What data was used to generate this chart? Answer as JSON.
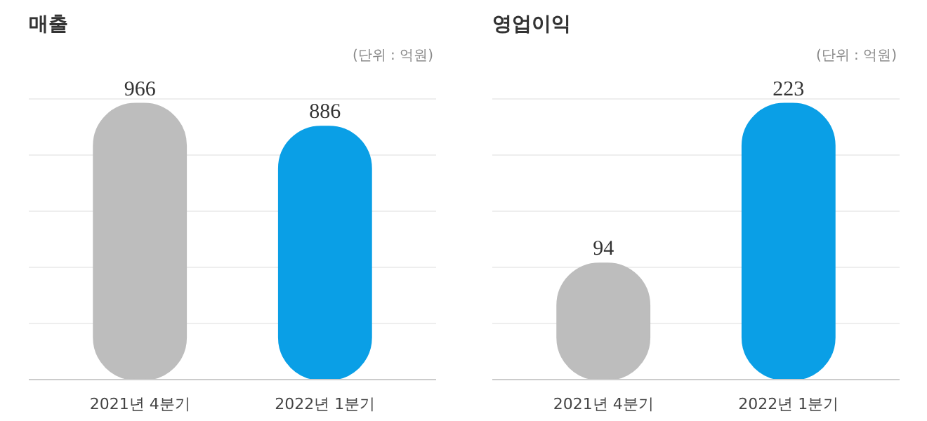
{
  "chart_data": [
    {
      "type": "bar",
      "title": "매출",
      "subtitle": "(단위 : 억원)",
      "categories": [
        "2021년 4분기",
        "2022년 1분기"
      ],
      "values": [
        966,
        886
      ],
      "colors": [
        "#bdbdbd",
        "#0a9fe6"
      ],
      "data_labels": true,
      "grid": "y"
    },
    {
      "type": "bar",
      "title": "영업이익",
      "subtitle": "(단위 : 억원)",
      "categories": [
        "2021년 4분기",
        "2022년 1분기"
      ],
      "values": [
        94,
        223
      ],
      "colors": [
        "#bdbdbd",
        "#0a9fe6"
      ],
      "data_labels": true,
      "grid": "y"
    }
  ]
}
